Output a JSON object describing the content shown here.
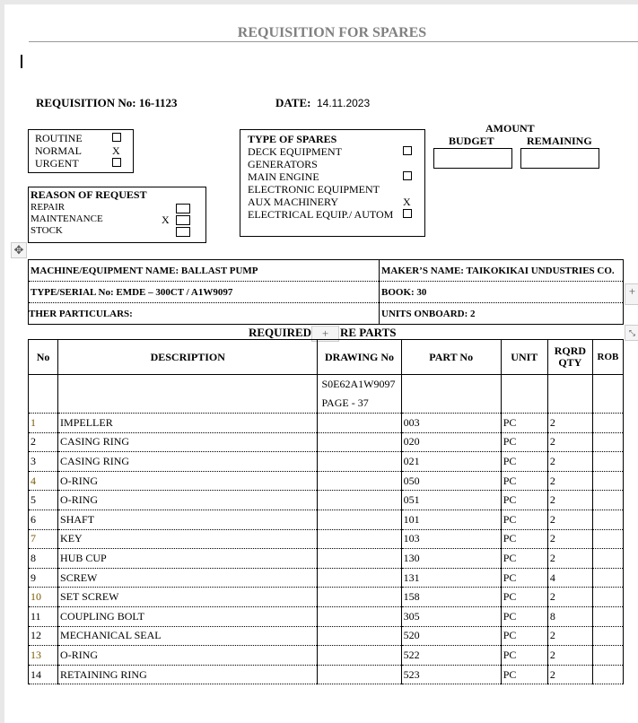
{
  "title": "REQUISITION FOR SPARES",
  "requisition": {
    "label": "REQUISITION No:",
    "value": "16-1123"
  },
  "date": {
    "label": "DATE:",
    "value": "14.11.2023"
  },
  "priority": [
    {
      "label": "ROUTINE",
      "checked": false
    },
    {
      "label": "NORMAL",
      "checked": true
    },
    {
      "label": "URGENT",
      "checked": false
    }
  ],
  "reason": {
    "title": "REASON OF REQUEST",
    "items": [
      {
        "label": "REPAIR",
        "checked": false
      },
      {
        "label": "MAINTENANCE",
        "checked": true
      },
      {
        "label": "STOCK",
        "checked": false
      }
    ]
  },
  "type_of_spares": {
    "title": "TYPE OF SPARES",
    "items": [
      {
        "label": "DECK EQUIPMENT",
        "mark": "box"
      },
      {
        "label": "GENERATORS",
        "mark": ""
      },
      {
        "label": "MAIN ENGINE",
        "mark": "box"
      },
      {
        "label": "ELECTRONIC EQUIPMENT",
        "mark": ""
      },
      {
        "label": "AUX MACHINERY",
        "mark": "X"
      },
      {
        "label": "ELECTRICAL EQUIP./ AUTOM",
        "mark": "box"
      }
    ]
  },
  "amount": {
    "title": "AMOUNT",
    "budget": "BUDGET",
    "remaining": "REMAINING"
  },
  "info": {
    "machine": "MACHINE/EQUIPMENT NAME:  BALLAST PUMP",
    "maker": "MAKER’S NAME:  TAIKOKIKAI UNDUSTRIES CO.",
    "type": "TYPE/SERIAL No:  EMDE – 300CT / A1W9097",
    "book": "BOOK:   30",
    "other": "THER PARTICULARS:",
    "units": "UNITS ONBOARD: 2"
  },
  "parts_title": "REQUIRED SPARE PARTS",
  "parts_title_visible": [
    "REQUIRED",
    "RE PARTS"
  ],
  "columns": [
    "No",
    "DESCRIPTION",
    "DRAWING No",
    "PART No",
    "UNIT",
    "RQRD QTY",
    "ROB"
  ],
  "drawing": {
    "number": "S0E62A1W9097",
    "page": "PAGE - 37"
  },
  "rows": [
    [
      "1",
      "IMPELLER",
      "003",
      "PC",
      "2"
    ],
    [
      "2",
      "CASING RING",
      "020",
      "PC",
      "2"
    ],
    [
      "3",
      "CASING RING",
      "021",
      "PC",
      "2"
    ],
    [
      "4",
      "O-RING",
      "050",
      "PC",
      "2"
    ],
    [
      "5",
      "O-RING",
      "051",
      "PC",
      "2"
    ],
    [
      "6",
      "SHAFT",
      "101",
      "PC",
      "2"
    ],
    [
      "7",
      "KEY",
      "103",
      "PC",
      "2"
    ],
    [
      "8",
      "HUB CUP",
      "130",
      "PC",
      "2"
    ],
    [
      "9",
      "SCREW",
      "131",
      "PC",
      "4"
    ],
    [
      "10",
      "SET SCREW",
      "158",
      "PC",
      "2"
    ],
    [
      "11",
      "COUPLING BOLT",
      "305",
      "PC",
      "8"
    ],
    [
      "12",
      "MECHANICAL SEAL",
      "520",
      "PC",
      "2"
    ],
    [
      "13",
      "O-RING",
      "522",
      "PC",
      "2"
    ],
    [
      "14",
      "RETAINING RING",
      "523",
      "PC",
      "2"
    ]
  ]
}
